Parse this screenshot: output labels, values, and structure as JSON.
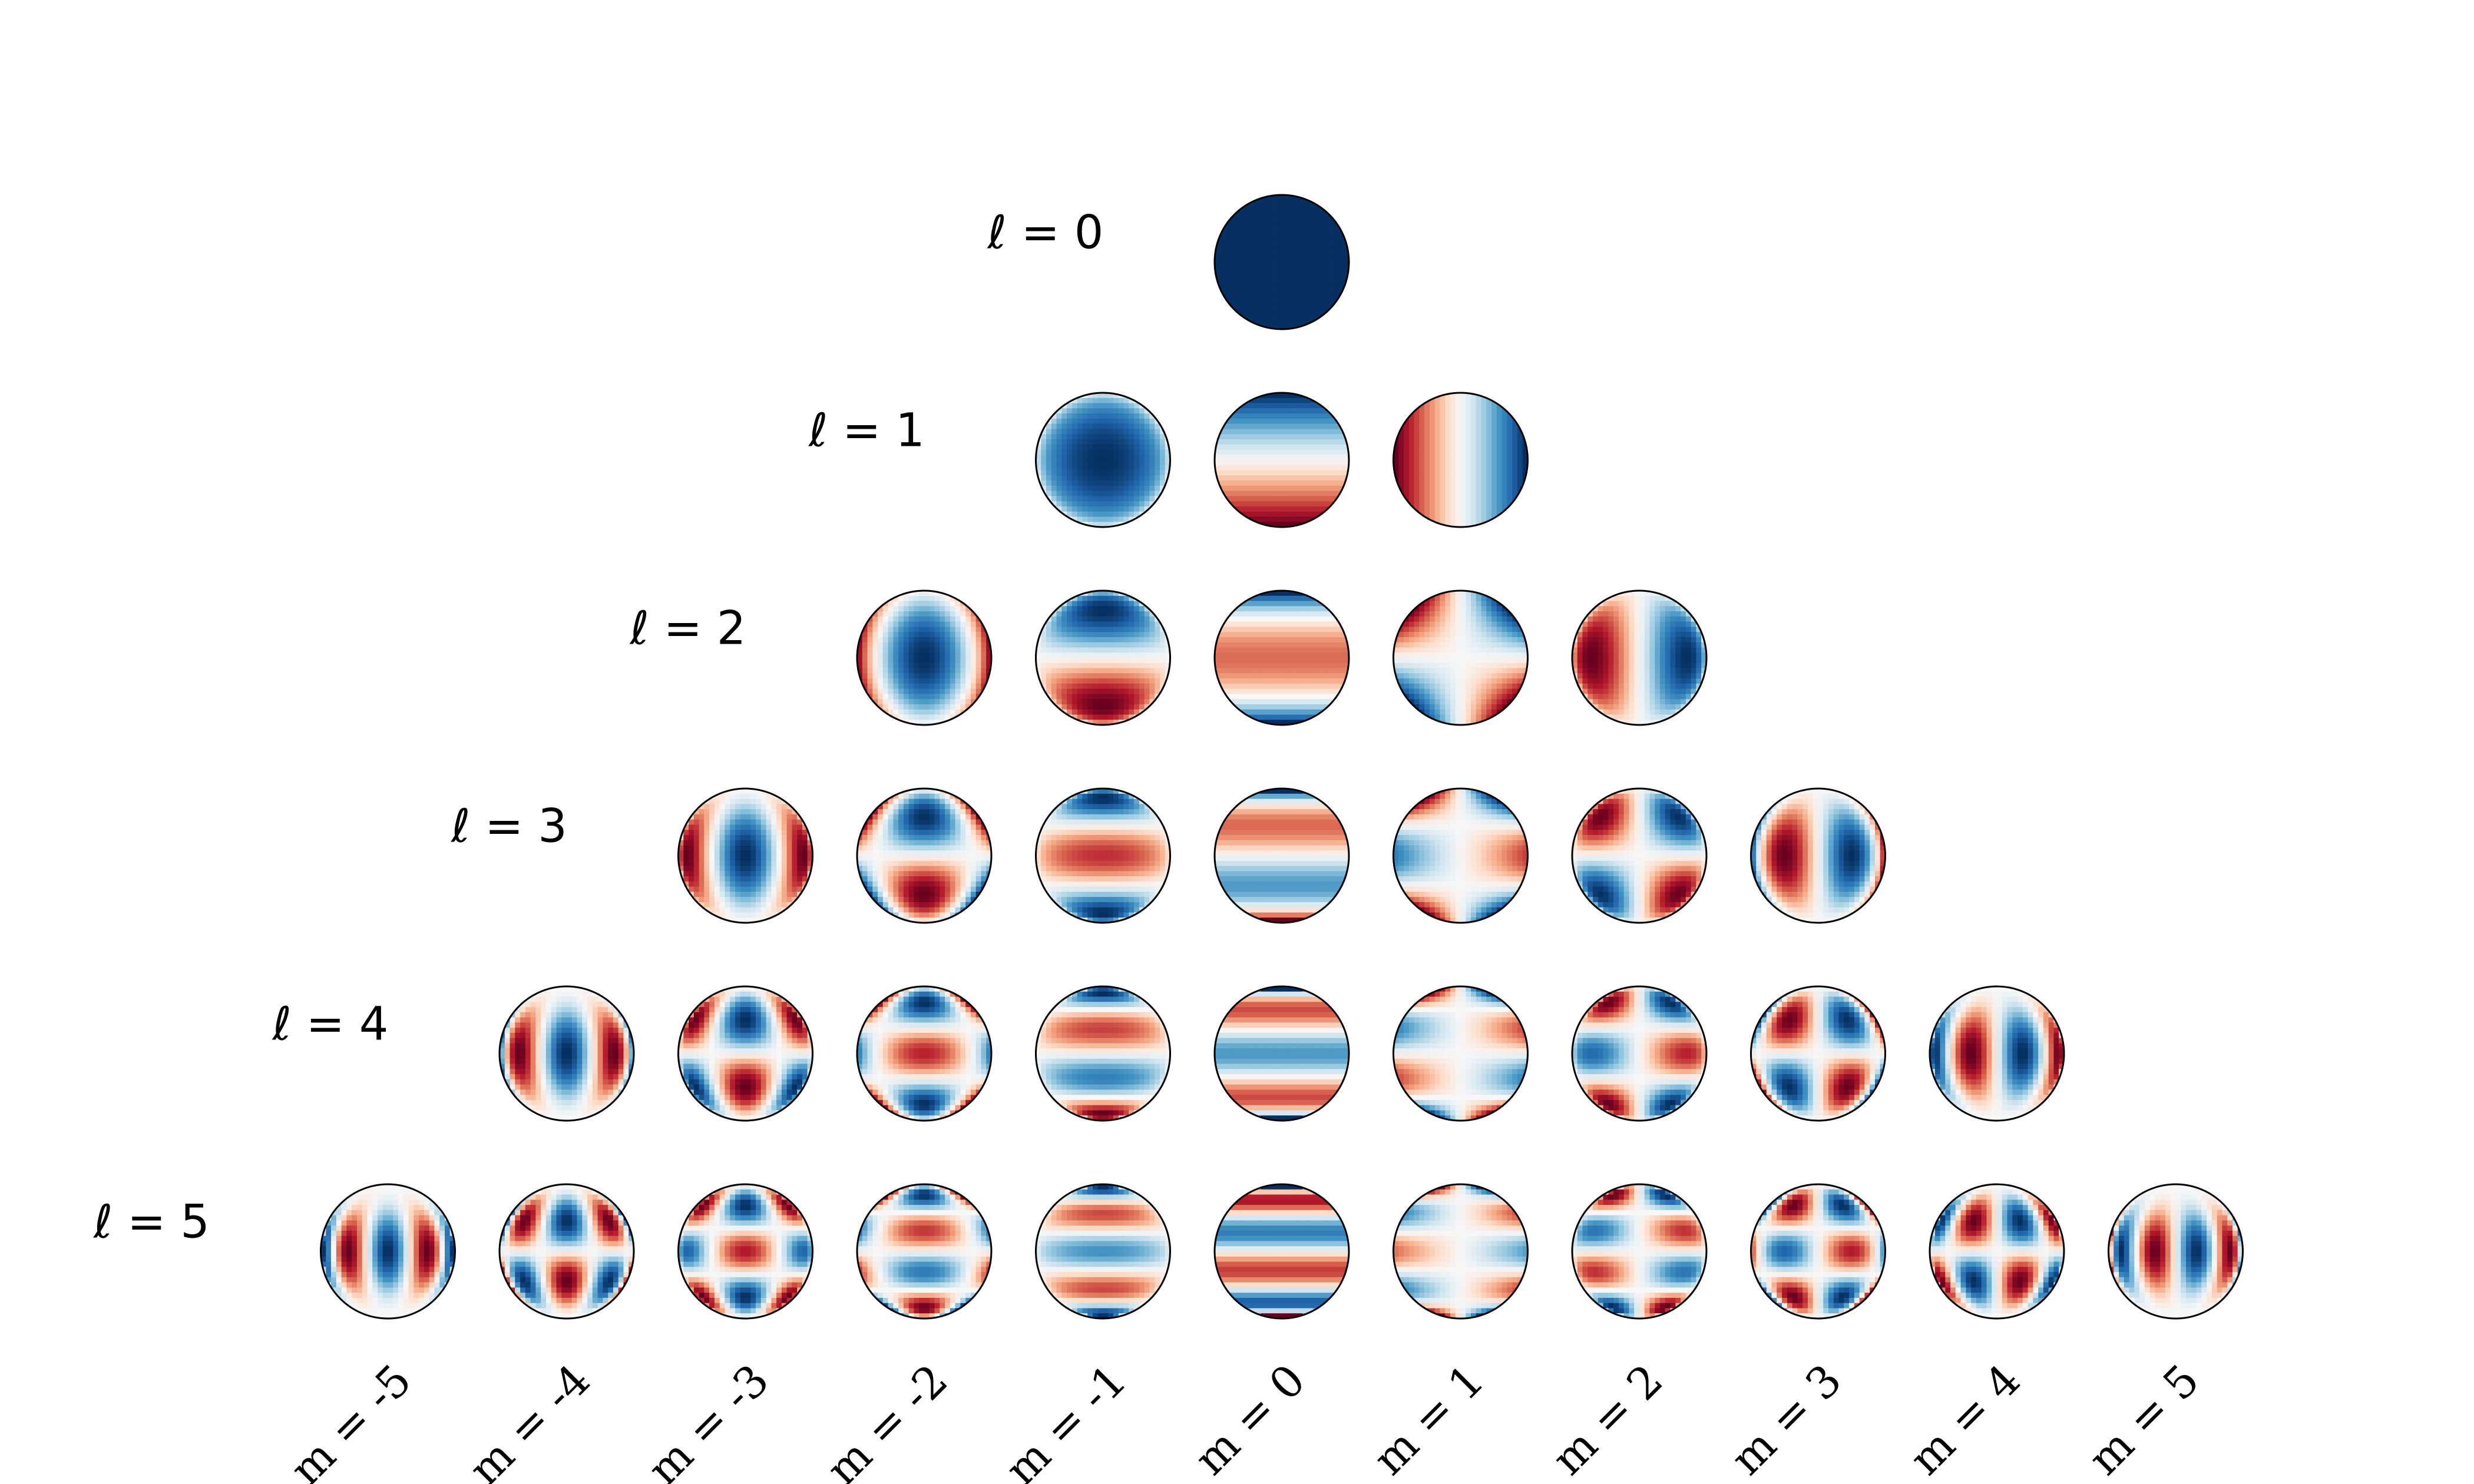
{
  "row_labels": [
    "ℓ = 0",
    "ℓ = 1",
    "ℓ = 2",
    "ℓ = 3",
    "ℓ = 4",
    "ℓ = 5"
  ],
  "column_labels": [
    "m = -5",
    "m = -4",
    "m = -3",
    "m = -2",
    "m = -1",
    "m = 0",
    "m = 1",
    "m = 2",
    "m = 3",
    "m = 4",
    "m = 5"
  ]
}
